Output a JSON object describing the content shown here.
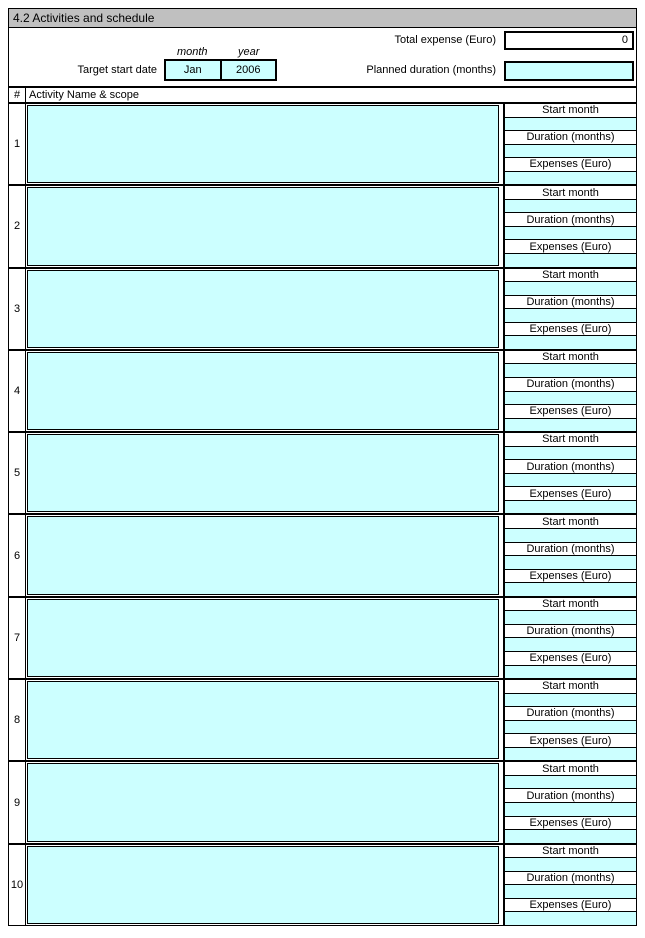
{
  "title": "4.2 Activities and schedule",
  "header": {
    "total_expense_label": "Total expense (Euro)",
    "total_expense_value": "0",
    "month_label": "month",
    "year_label": "year",
    "target_start_date_label": "Target start date",
    "month_value": "Jan",
    "year_value": "2006",
    "planned_duration_label": "Planned duration (months)",
    "planned_duration_value": ""
  },
  "table": {
    "number_header": "#",
    "activity_header": "Activity Name & scope",
    "field_labels": {
      "start_month": "Start month",
      "duration": "Duration (months)",
      "expenses": "Expenses (Euro)"
    },
    "rows": [
      {
        "number": "1",
        "activity": "",
        "start_month": "",
        "duration": "",
        "expenses": ""
      },
      {
        "number": "2",
        "activity": "",
        "start_month": "",
        "duration": "",
        "expenses": ""
      },
      {
        "number": "3",
        "activity": "",
        "start_month": "",
        "duration": "",
        "expenses": ""
      },
      {
        "number": "4",
        "activity": "",
        "start_month": "",
        "duration": "",
        "expenses": ""
      },
      {
        "number": "5",
        "activity": "",
        "start_month": "",
        "duration": "",
        "expenses": ""
      },
      {
        "number": "6",
        "activity": "",
        "start_month": "",
        "duration": "",
        "expenses": ""
      },
      {
        "number": "7",
        "activity": "",
        "start_month": "",
        "duration": "",
        "expenses": ""
      },
      {
        "number": "8",
        "activity": "",
        "start_month": "",
        "duration": "",
        "expenses": ""
      },
      {
        "number": "9",
        "activity": "",
        "start_month": "",
        "duration": "",
        "expenses": ""
      },
      {
        "number": "10",
        "activity": "",
        "start_month": "",
        "duration": "",
        "expenses": ""
      }
    ]
  },
  "colors": {
    "input_cyan": "#CCFFFF",
    "title_gray": "#C0C0C0",
    "border": "#000000"
  }
}
